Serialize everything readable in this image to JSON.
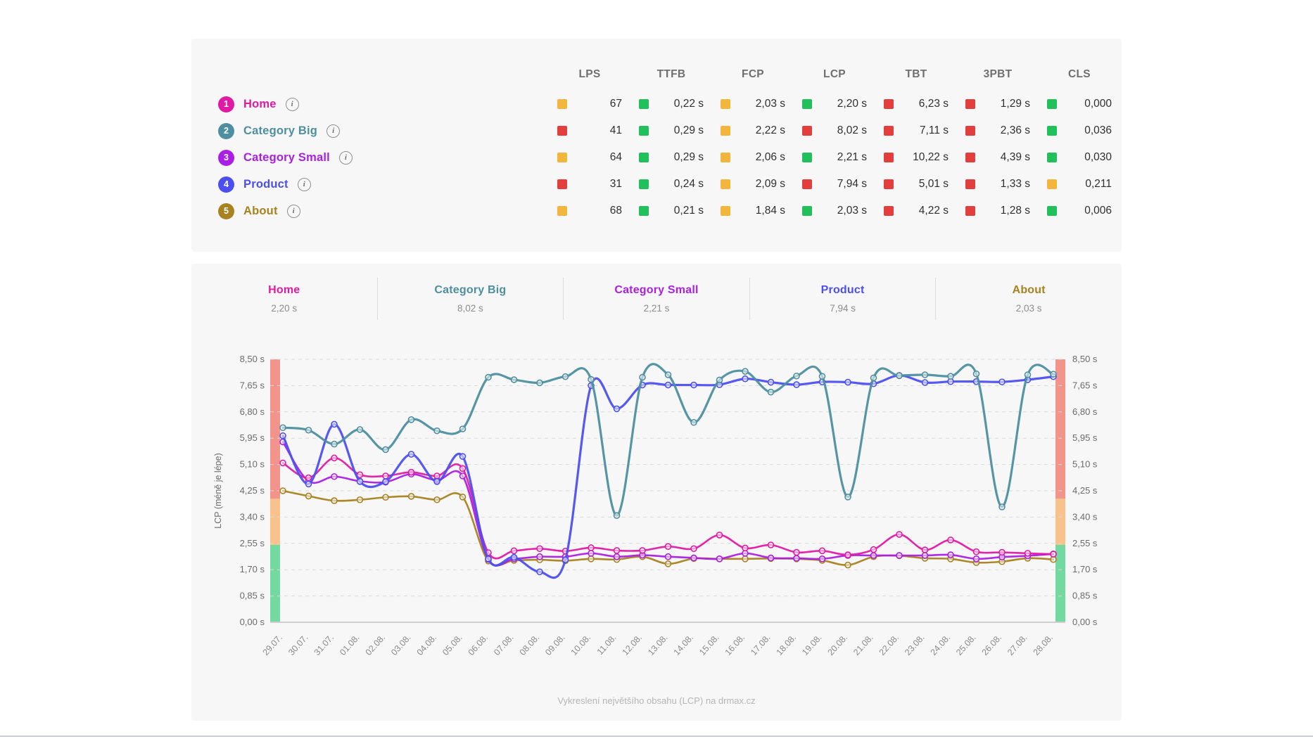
{
  "page": {
    "background": "#ffffff",
    "panel_background": "#f7f7f7",
    "bottom_rule_color": "#c9cdd1"
  },
  "status_colors": {
    "good": "#22c05a",
    "warn": "#f2b63d",
    "poor": "#e23e3e"
  },
  "icons": {
    "row_info": "info-icon",
    "status_square": "status-square-icon"
  },
  "summary_table": {
    "columns": [
      "LPS",
      "TTFB",
      "FCP",
      "LCP",
      "TBT",
      "3PBT",
      "CLS"
    ],
    "rows": [
      {
        "rank": "1",
        "name": "Home",
        "color": "#e01aa4",
        "cells": [
          {
            "value": "67",
            "status": "warn"
          },
          {
            "value": "0,22 s",
            "status": "good"
          },
          {
            "value": "2,03 s",
            "status": "warn"
          },
          {
            "value": "2,20 s",
            "status": "good"
          },
          {
            "value": "6,23 s",
            "status": "poor"
          },
          {
            "value": "1,29 s",
            "status": "poor"
          },
          {
            "value": "0,000",
            "status": "good"
          }
        ]
      },
      {
        "rank": "2",
        "name": "Category Big",
        "color": "#4d8fa0",
        "cells": [
          {
            "value": "41",
            "status": "poor"
          },
          {
            "value": "0,29 s",
            "status": "good"
          },
          {
            "value": "2,22 s",
            "status": "warn"
          },
          {
            "value": "8,02 s",
            "status": "poor"
          },
          {
            "value": "7,11 s",
            "status": "poor"
          },
          {
            "value": "2,36 s",
            "status": "poor"
          },
          {
            "value": "0,036",
            "status": "good"
          }
        ]
      },
      {
        "rank": "3",
        "name": "Category Small",
        "color": "#ab1fe3",
        "cells": [
          {
            "value": "64",
            "status": "warn"
          },
          {
            "value": "0,29 s",
            "status": "good"
          },
          {
            "value": "2,06 s",
            "status": "warn"
          },
          {
            "value": "2,21 s",
            "status": "good"
          },
          {
            "value": "10,22 s",
            "status": "poor"
          },
          {
            "value": "4,39 s",
            "status": "poor"
          },
          {
            "value": "0,030",
            "status": "good"
          }
        ]
      },
      {
        "rank": "4",
        "name": "Product",
        "color": "#4c4ff0",
        "cells": [
          {
            "value": "31",
            "status": "poor"
          },
          {
            "value": "0,24 s",
            "status": "good"
          },
          {
            "value": "2,09 s",
            "status": "warn"
          },
          {
            "value": "7,94 s",
            "status": "poor"
          },
          {
            "value": "5,01 s",
            "status": "poor"
          },
          {
            "value": "1,33 s",
            "status": "poor"
          },
          {
            "value": "0,211",
            "status": "warn"
          }
        ]
      },
      {
        "rank": "5",
        "name": "About",
        "color": "#a8821f",
        "cells": [
          {
            "value": "68",
            "status": "warn"
          },
          {
            "value": "0,21 s",
            "status": "good"
          },
          {
            "value": "1,84 s",
            "status": "warn"
          },
          {
            "value": "2,03 s",
            "status": "good"
          },
          {
            "value": "4,22 s",
            "status": "poor"
          },
          {
            "value": "1,28 s",
            "status": "poor"
          },
          {
            "value": "0,006",
            "status": "good"
          }
        ]
      }
    ]
  },
  "tabs": [
    {
      "name": "Home",
      "value": "2,20 s",
      "color": "#e01aa4"
    },
    {
      "name": "Category Big",
      "value": "8,02 s",
      "color": "#4d8fa0"
    },
    {
      "name": "Category Small",
      "value": "2,21 s",
      "color": "#ab1fe3"
    },
    {
      "name": "Product",
      "value": "7,94 s",
      "color": "#4c4ff0"
    },
    {
      "name": "About",
      "value": "2,03 s",
      "color": "#a8821f"
    }
  ],
  "chart_data": {
    "type": "line",
    "title": "Vykreslení největšího obsahu (LCP) na drmax.cz",
    "ylabel": "LCP (méně je lépe)",
    "ylim": [
      0,
      8.5
    ],
    "ytick_step": 0.85,
    "ytick_labels": [
      "0,00 s",
      "0,85 s",
      "1,70 s",
      "2,55 s",
      "3,40 s",
      "4,25 s",
      "5,10 s",
      "5,95 s",
      "6,80 s",
      "7,65 s",
      "8,50 s"
    ],
    "grid": "horizontal-dashed",
    "legend_position": "top-tabs",
    "x": [
      "29.07.",
      "30.07.",
      "31.07.",
      "01.08.",
      "02.08.",
      "03.08.",
      "04.08.",
      "05.08.",
      "06.08.",
      "07.08.",
      "08.08.",
      "09.08.",
      "10.08.",
      "11.08.",
      "12.08.",
      "13.08.",
      "14.08.",
      "15.08.",
      "16.08.",
      "17.08.",
      "18.08.",
      "19.08.",
      "20.08.",
      "21.08.",
      "22.08.",
      "23.08.",
      "24.08.",
      "25.08.",
      "26.08.",
      "27.08.",
      "28.08."
    ],
    "series": [
      {
        "name": "Home",
        "color": "#e01aa4",
        "width": 2.6,
        "values": [
          5.15,
          4.67,
          5.31,
          4.77,
          4.73,
          4.85,
          4.73,
          4.97,
          2.25,
          2.31,
          2.38,
          2.3,
          2.41,
          2.32,
          2.32,
          2.45,
          2.38,
          2.82,
          2.4,
          2.5,
          2.26,
          2.31,
          2.18,
          2.35,
          2.84,
          2.34,
          2.66,
          2.28,
          2.26,
          2.23,
          2.2
        ]
      },
      {
        "name": "Category Big",
        "color": "#4d8fa0",
        "width": 3.2,
        "values": [
          6.29,
          6.21,
          5.76,
          6.23,
          5.58,
          6.55,
          6.19,
          6.25,
          7.92,
          7.84,
          7.74,
          7.94,
          7.85,
          3.45,
          7.92,
          8.0,
          6.46,
          7.83,
          8.11,
          7.44,
          7.96,
          7.95,
          4.05,
          7.9,
          7.97,
          8.0,
          7.95,
          8.03,
          3.73,
          8.0,
          8.02
        ]
      },
      {
        "name": "Category Small",
        "color": "#ab1fe3",
        "width": 2.6,
        "values": [
          5.83,
          4.56,
          4.71,
          4.56,
          4.53,
          4.79,
          4.59,
          4.73,
          2.03,
          2.05,
          2.12,
          2.12,
          2.23,
          2.12,
          2.17,
          2.12,
          2.08,
          2.05,
          2.23,
          2.08,
          2.07,
          2.05,
          2.16,
          2.16,
          2.16,
          2.16,
          2.18,
          2.05,
          2.11,
          2.15,
          2.21
        ]
      },
      {
        "name": "Product",
        "color": "#4c4ff0",
        "width": 3.2,
        "values": [
          6.03,
          4.47,
          6.4,
          4.55,
          4.55,
          5.43,
          4.55,
          5.36,
          2.05,
          2.1,
          1.63,
          2.02,
          7.65,
          6.9,
          7.67,
          7.67,
          7.67,
          7.68,
          7.87,
          7.76,
          7.68,
          7.77,
          7.76,
          7.71,
          7.98,
          7.75,
          7.78,
          7.78,
          7.77,
          7.84,
          7.94
        ]
      },
      {
        "name": "About",
        "color": "#a8821f",
        "width": 2.6,
        "values": [
          4.25,
          4.08,
          3.93,
          3.96,
          4.04,
          4.07,
          3.96,
          4.05,
          1.98,
          2.0,
          2.02,
          1.99,
          2.05,
          2.03,
          2.12,
          1.89,
          2.06,
          2.05,
          2.05,
          2.06,
          2.05,
          2.0,
          1.85,
          2.12,
          2.15,
          2.07,
          2.05,
          1.93,
          1.96,
          2.07,
          2.03
        ]
      }
    ],
    "threshold_bands": [
      {
        "from": 0,
        "to": 2.5,
        "color": "#74d9a1"
      },
      {
        "from": 2.5,
        "to": 4.0,
        "color": "#f7c28b"
      },
      {
        "from": 4.0,
        "to": 8.5,
        "color": "#f2948c"
      }
    ]
  }
}
